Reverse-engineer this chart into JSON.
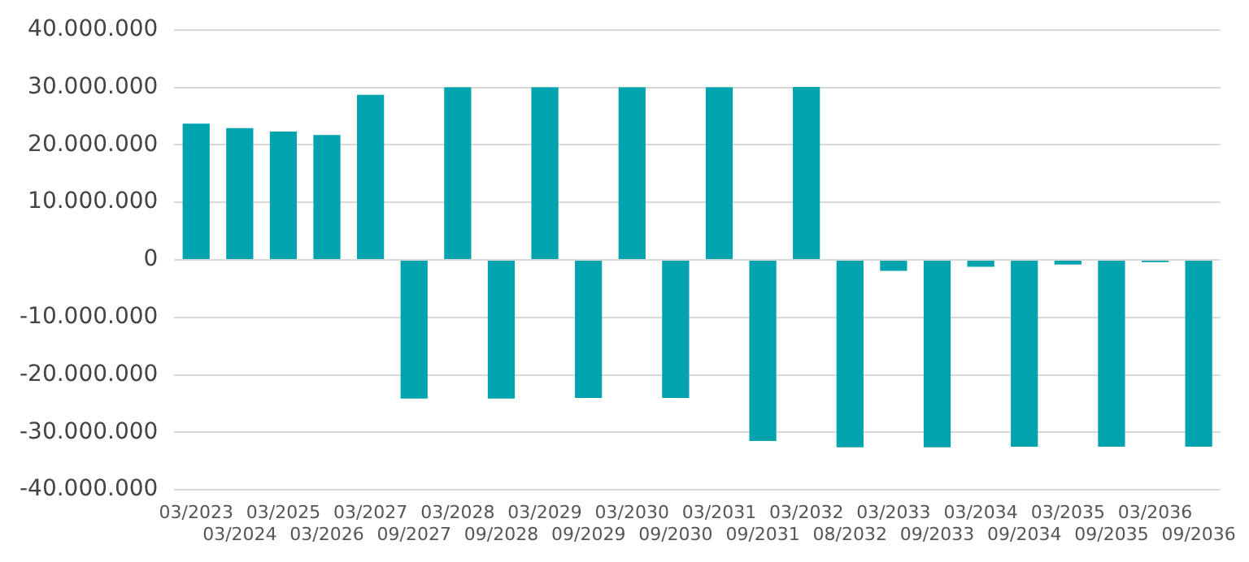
{
  "chart_data": {
    "type": "bar",
    "categories": [
      "03/2023",
      "03/2024",
      "03/2025",
      "03/2026",
      "03/2027",
      "09/2027",
      "03/2028",
      "09/2028",
      "03/2029",
      "09/2029",
      "03/2030",
      "09/2030",
      "03/2031",
      "09/2031",
      "03/2032",
      "08/2032",
      "03/2033",
      "09/2033",
      "03/2034",
      "09/2034",
      "03/2035",
      "09/2035",
      "03/2036",
      "09/2036"
    ],
    "values": [
      23700000,
      22900000,
      22300000,
      21700000,
      28700000,
      -24100000,
      30000000,
      -24100000,
      30000000,
      -24000000,
      30000000,
      -24000000,
      30000000,
      -31500000,
      30100000,
      -32600000,
      -1900000,
      -32600000,
      -1200000,
      -32500000,
      -800000,
      -32500000,
      -400000,
      -32500000
    ],
    "color": "#00a3ae",
    "ylim": [
      -40000000,
      40000000
    ],
    "yticks": [
      {
        "value": -40000000,
        "label": "-40.000.000"
      },
      {
        "value": -30000000,
        "label": "-30.000.000"
      },
      {
        "value": -20000000,
        "label": "-20.000.000"
      },
      {
        "value": -10000000,
        "label": "-10.000.000"
      },
      {
        "value": 0,
        "label": "0"
      },
      {
        "value": 10000000,
        "label": "10.000.000"
      },
      {
        "value": 20000000,
        "label": "20.000.000"
      },
      {
        "value": 30000000,
        "label": "30.000.000"
      },
      {
        "value": 40000000,
        "label": "40.000.000"
      }
    ],
    "grid": "y"
  }
}
